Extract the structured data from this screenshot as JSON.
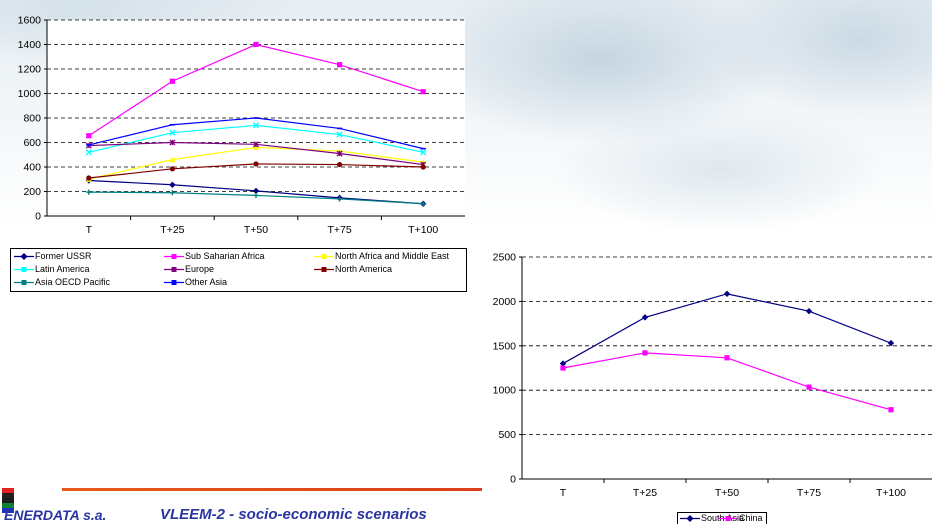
{
  "footer": {
    "company": "ENERDATA s.a.",
    "title": "VLEEM-2  - socio-economic scenarios"
  },
  "chart_data": [
    {
      "type": "line",
      "title": "",
      "xlabel": "",
      "ylabel": "",
      "categories": [
        "T",
        "T+25",
        "T+50",
        "T+75",
        "T+100"
      ],
      "ylim": [
        0,
        1600
      ],
      "yticks": [
        0,
        200,
        400,
        600,
        800,
        1000,
        1200,
        1400,
        1600
      ],
      "grid": "horizontal dashed",
      "legend": "bottom",
      "series": [
        {
          "name": "Former USSR",
          "color": "#000080",
          "marker": "diamond",
          "values": [
            290,
            255,
            205,
            148,
            100
          ]
        },
        {
          "name": "Sub Saharian Africa",
          "color": "#ff00ff",
          "marker": "square",
          "values": [
            655,
            1100,
            1400,
            1235,
            1015
          ]
        },
        {
          "name": "North Africa and Middle East",
          "color": "#ffff00",
          "marker": "triangle",
          "values": [
            300,
            460,
            560,
            530,
            440
          ]
        },
        {
          "name": "Latin America",
          "color": "#00ffff",
          "marker": "x",
          "values": [
            520,
            680,
            740,
            665,
            520
          ]
        },
        {
          "name": "Europe",
          "color": "#800080",
          "marker": "star",
          "values": [
            575,
            600,
            585,
            510,
            420
          ]
        },
        {
          "name": "North America",
          "color": "#800000",
          "marker": "circle",
          "values": [
            310,
            385,
            425,
            420,
            400
          ]
        },
        {
          "name": "Asia OECD Pacific",
          "color": "#008080",
          "marker": "plus",
          "values": [
            195,
            190,
            168,
            140,
            100
          ]
        },
        {
          "name": "Other Asia",
          "color": "#0000ff",
          "marker": "dash",
          "values": [
            580,
            745,
            800,
            715,
            550
          ]
        }
      ]
    },
    {
      "type": "line",
      "title": "",
      "xlabel": "",
      "ylabel": "",
      "categories": [
        "T",
        "T+25",
        "T+50",
        "T+75",
        "T+100"
      ],
      "ylim": [
        0,
        2500
      ],
      "yticks": [
        0,
        500,
        1000,
        1500,
        2000,
        2500
      ],
      "grid": "horizontal dashed",
      "legend": "bottom",
      "series": [
        {
          "name": "South Asia",
          "color": "#000080",
          "marker": "diamond",
          "values": [
            1300,
            1820,
            2085,
            1890,
            1530
          ]
        },
        {
          "name": "China",
          "color": "#ff00ff",
          "marker": "square",
          "values": [
            1250,
            1420,
            1365,
            1035,
            780
          ]
        }
      ]
    }
  ]
}
